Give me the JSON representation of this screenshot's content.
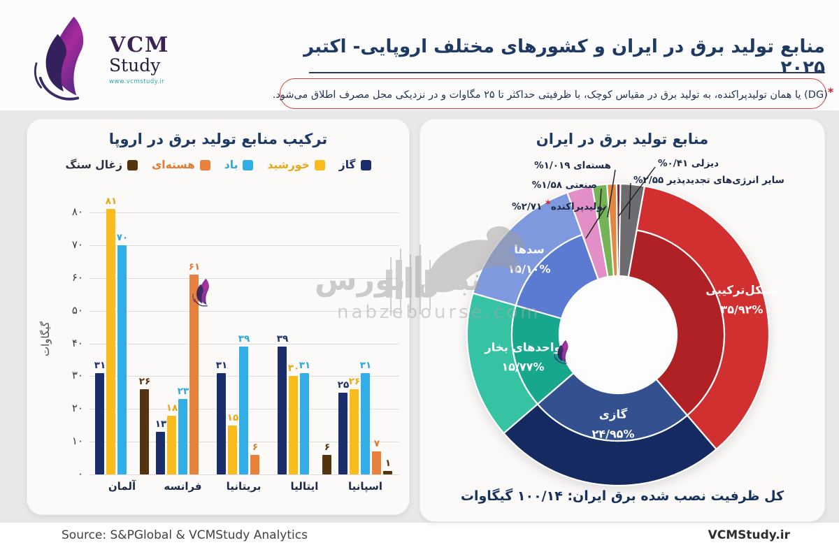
{
  "header": {
    "logo": {
      "brand": "VCM",
      "sub": "Study",
      "url": "www.vcmstudy.ir"
    },
    "title": "منابع تولید برق در ایران و کشورهای مختلف اروپایی- اکتبر ۲۰۲۵",
    "note_star": "*",
    "note": "(DG) یا همان تولیدپراکنده، به تولید برق در مقیاس کوچک، با ظرفیتی حداکثر تا ۲۵ مگاوات و در نزدیکی محل مصرف اطلاق می‌شود."
  },
  "chart_data": [
    {
      "type": "bar",
      "title": "ترکیب منابع تولید برق در اروپا",
      "xlabel": "",
      "ylabel": "گیگاوات",
      "ylim": [
        0,
        80
      ],
      "grid": true,
      "legend_position": "top",
      "yticks": [
        {
          "v": 0,
          "label": "۰"
        },
        {
          "v": 10,
          "label": "۱۰"
        },
        {
          "v": 20,
          "label": "۲۰"
        },
        {
          "v": 30,
          "label": "۳۰"
        },
        {
          "v": 40,
          "label": "۴۰"
        },
        {
          "v": 50,
          "label": "۵۰"
        },
        {
          "v": 60,
          "label": "۶۰"
        },
        {
          "v": 70,
          "label": "۷۰"
        },
        {
          "v": 80,
          "label": "۸۰"
        }
      ],
      "categories": [
        "آلمان",
        "فرانسه",
        "بریتانیا",
        "ایتالیا",
        "اسپانیا"
      ],
      "series": [
        {
          "name": "گاز",
          "color": "#1b2e6b",
          "label_color": "#1b2e6b",
          "values": [
            31,
            13,
            31,
            39,
            25
          ]
        },
        {
          "name": "خورشید",
          "color": "#f8bd1c",
          "label_color": "#e8a713",
          "values": [
            81,
            18,
            15,
            30,
            26
          ]
        },
        {
          "name": "باد",
          "color": "#30aee5",
          "label_color": "#2aa7dd",
          "values": [
            70,
            23,
            39,
            31,
            31
          ]
        },
        {
          "name": "هسته‌ای",
          "color": "#e8813c",
          "label_color": "#e07b33",
          "values": [
            0,
            61,
            6,
            0,
            7
          ]
        },
        {
          "name": "زغال سنگ",
          "color": "#54330f",
          "label_color": "#54330f",
          "legend_text_color": "#2f2f44",
          "values": [
            26,
            0,
            0,
            6,
            1
          ]
        }
      ]
    },
    {
      "type": "pie",
      "donut": true,
      "title": "منابع تولید برق در ایران",
      "start_angle_deg_cw_from_12": 10.1,
      "slices": [
        {
          "name": "سیکل‌ترکیبی",
          "pct": 35.92,
          "value_label": "۳۵/۹۲%",
          "color_outer": "#d23030",
          "color_inner": "#b02125"
        },
        {
          "name": "گازی",
          "pct": 24.95,
          "value_label": "۲۴/۹۵%",
          "color_outer": "#142a60",
          "color_inner": "#33508f"
        },
        {
          "name": "واحدهای بخار",
          "pct": 15.77,
          "value_label": "۱۵/۷۷%",
          "color_outer": "#35c3a4",
          "color_inner": "#16a78d"
        },
        {
          "name": "سدها",
          "pct": 15.1,
          "value_label": "۱۵/۱۰%",
          "color_outer": "#7e99dd",
          "color_inner": "#5b7bd2"
        },
        {
          "name": "تولیدپراکنده",
          "star": "*",
          "pct": 2.71,
          "value_label": "۲/۷۱%",
          "color": "#e18fc6"
        },
        {
          "name": "صنعتی",
          "pct": 1.58,
          "value_label": "۱/۵۸%",
          "color": "#74b457"
        },
        {
          "name": "هسته‌ای",
          "pct": 1.019,
          "value_label": "۱/۰۱۹%",
          "color": "#e2873d"
        },
        {
          "name": "دیزلی",
          "pct": 0.41,
          "value_label": "۰/۴۱%",
          "color": "#7a2040"
        },
        {
          "name": "سایر انرژی‌های تجدیدپذیر",
          "pct": 2.55,
          "value_label": "۲/۵۵%",
          "color": "#6d6d71"
        }
      ],
      "footer_note": "کل ظرفیت نصب شده برق ایران: ۱۰۰/۱۴ گیگاوات"
    }
  ],
  "watermark": {
    "brand": "نبض بورس",
    "domain": "nabzebourse.com"
  },
  "footer": {
    "source": "Source: S&PGlobal & VCMStudy Analytics",
    "site": "VCMStudy.ir"
  }
}
